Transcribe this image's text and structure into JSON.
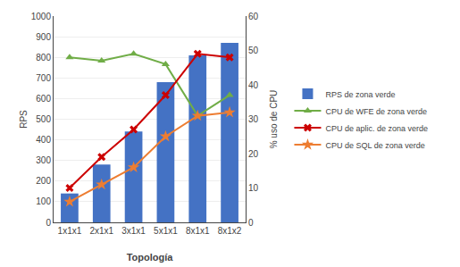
{
  "chart_data": {
    "type": "bar",
    "xlabel": "Topología",
    "ylabel": "RPS",
    "y2label": "% uso de CPU",
    "categories": [
      "1x1x1",
      "2x1x1",
      "3x1x1",
      "5x1x1",
      "8x1x1",
      "8x1x2"
    ],
    "series": [
      {
        "name": "RPS de zona verde",
        "type": "bar",
        "color": "#4472C4",
        "values": [
          140,
          280,
          440,
          680,
          810,
          870
        ]
      },
      {
        "name": "CPU de WFE de zona verde",
        "type": "line",
        "axis": "y2",
        "color": "#70AD47",
        "marker": "triangle-up",
        "values": [
          48,
          47,
          49,
          46,
          31,
          37
        ]
      },
      {
        "name": "CPU de aplic. de zona verde",
        "type": "line",
        "axis": "y2",
        "color": "#CC0000",
        "marker": "x",
        "values": [
          10,
          19,
          27,
          37,
          49,
          48
        ]
      },
      {
        "name": "CPU de SQL de zona verde",
        "type": "line",
        "axis": "y2",
        "color": "#ED7D31",
        "marker": "star",
        "values": [
          6,
          11,
          16,
          25,
          31,
          32
        ]
      }
    ],
    "ylim": [
      0,
      1000
    ],
    "yticks": [
      0,
      100,
      200,
      300,
      400,
      500,
      600,
      700,
      800,
      900,
      1000
    ],
    "y2lim": [
      0,
      60
    ],
    "y2ticks": [
      0,
      10,
      20,
      30,
      40,
      50,
      60
    ],
    "grid": true,
    "legend": "right"
  }
}
